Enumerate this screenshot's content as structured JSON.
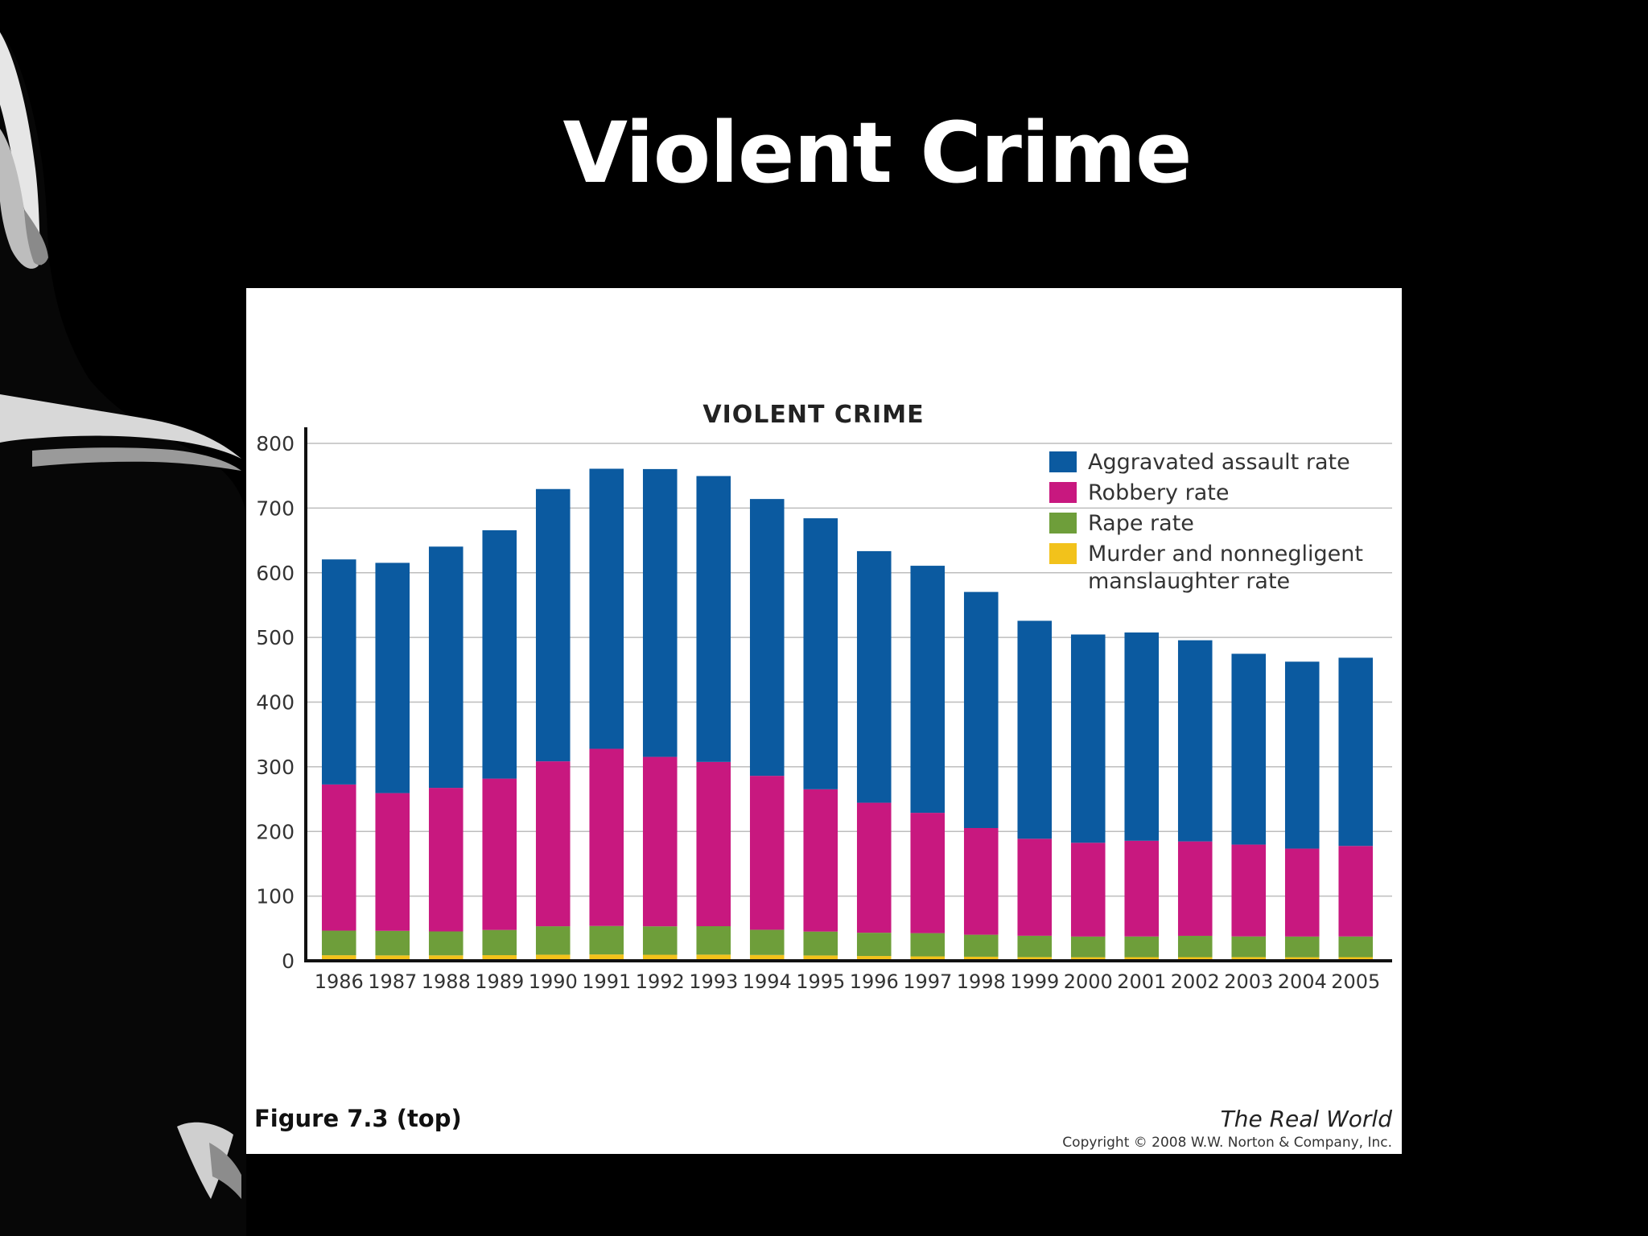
{
  "slide": {
    "title": "Violent Crime"
  },
  "figure": {
    "caption": "Figure 7.3 (top)",
    "book_title": "The Real World",
    "copyright": "Copyright © 2008 W.W. Norton & Company, Inc."
  },
  "chart_data": {
    "type": "bar",
    "stacked": true,
    "title": "VIOLENT CRIME",
    "xlabel": "",
    "ylabel": "",
    "ylim": [
      0,
      800
    ],
    "yticks": [
      0,
      100,
      200,
      300,
      400,
      500,
      600,
      700,
      800
    ],
    "grid": true,
    "legend_position": "top-right",
    "categories": [
      "1986",
      "1987",
      "1988",
      "1989",
      "1990",
      "1991",
      "1992",
      "1993",
      "1994",
      "1995",
      "1996",
      "1997",
      "1998",
      "1999",
      "2000",
      "2001",
      "2002",
      "2003",
      "2004",
      "2005"
    ],
    "series": [
      {
        "name": "Murder and nonnegligent\nmanslaughter rate",
        "color": "#f2c21b",
        "values": [
          8.6,
          8.3,
          8.4,
          8.7,
          9.4,
          9.8,
          9.3,
          9.5,
          9.0,
          8.2,
          7.4,
          6.8,
          6.3,
          5.7,
          5.5,
          5.6,
          5.6,
          5.7,
          5.5,
          5.6
        ]
      },
      {
        "name": "Rape rate",
        "color": "#6e9e3a",
        "values": [
          38,
          38,
          37,
          39,
          44,
          44,
          44,
          44,
          39,
          37,
          36,
          36,
          34,
          33,
          32,
          32,
          33,
          32,
          32,
          32
        ]
      },
      {
        "name": "Robbery rate",
        "color": "#c8187f",
        "values": [
          226,
          213,
          222,
          234,
          255,
          274,
          262,
          254,
          238,
          220,
          201,
          186,
          165,
          150,
          145,
          148,
          146,
          142,
          136,
          140
        ]
      },
      {
        "name": "Aggravated assault rate",
        "color": "#0b5aa0",
        "values": [
          348,
          356,
          373,
          384,
          421,
          433,
          445,
          442,
          428,
          419,
          389,
          382,
          365,
          337,
          322,
          322,
          311,
          295,
          289,
          291
        ]
      }
    ],
    "legend_order": [
      "Aggravated assault rate",
      "Robbery rate",
      "Rape rate",
      "Murder and nonnegligent\nmanslaughter rate"
    ]
  }
}
